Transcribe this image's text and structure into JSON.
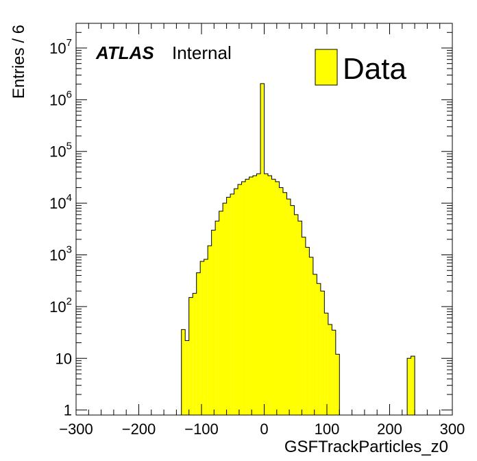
{
  "chart_data": {
    "type": "bar",
    "histogram": true,
    "xlabel": "GSFTrackParticles_z0",
    "ylabel": "Entries / 6",
    "xlim": [
      -300,
      300
    ],
    "ylim": [
      0.8,
      30000000
    ],
    "log_y": true,
    "bin_width": 6,
    "x_ticks": [
      -300,
      -200,
      -100,
      0,
      100,
      200,
      300
    ],
    "x_tick_labels": [
      "−300",
      "−200",
      "−100",
      "0",
      "100",
      "200",
      "300"
    ],
    "y_ticks": [
      {
        "value": 1,
        "base": "1",
        "exp": ""
      },
      {
        "value": 10,
        "base": "10",
        "exp": ""
      },
      {
        "value": 100,
        "base": "10",
        "exp": "2"
      },
      {
        "value": 1000,
        "base": "10",
        "exp": "3"
      },
      {
        "value": 10000,
        "base": "10",
        "exp": "4"
      },
      {
        "value": 100000,
        "base": "10",
        "exp": "5"
      },
      {
        "value": 1000000,
        "base": "10",
        "exp": "6"
      },
      {
        "value": 10000000,
        "base": "10",
        "exp": "7"
      }
    ],
    "bin_edges_start": -132,
    "values": [
      36,
      22,
      150,
      180,
      450,
      750,
      820,
      1500,
      3000,
      4500,
      7000,
      10000,
      13000,
      15000,
      19000,
      23000,
      26000,
      29000,
      32000,
      34000,
      37000,
      2050000,
      37000,
      34000,
      29000,
      26000,
      20000,
      16000,
      12000,
      9000,
      6000,
      4500,
      2200,
      1400,
      900,
      420,
      280,
      200,
      75,
      45,
      35,
      12,
      0,
      0,
      0,
      0,
      0,
      0,
      0,
      0,
      0,
      0,
      0,
      0,
      0,
      0,
      0,
      0,
      0,
      0,
      10,
      11
    ],
    "legend": {
      "label": "Data",
      "position": "top-right",
      "fill": "#ffff00"
    },
    "fill_color": "#ffff00",
    "line_color": "#000000",
    "annotation": {
      "bold_italic": "ATLAS",
      "regular": "Internal"
    }
  }
}
